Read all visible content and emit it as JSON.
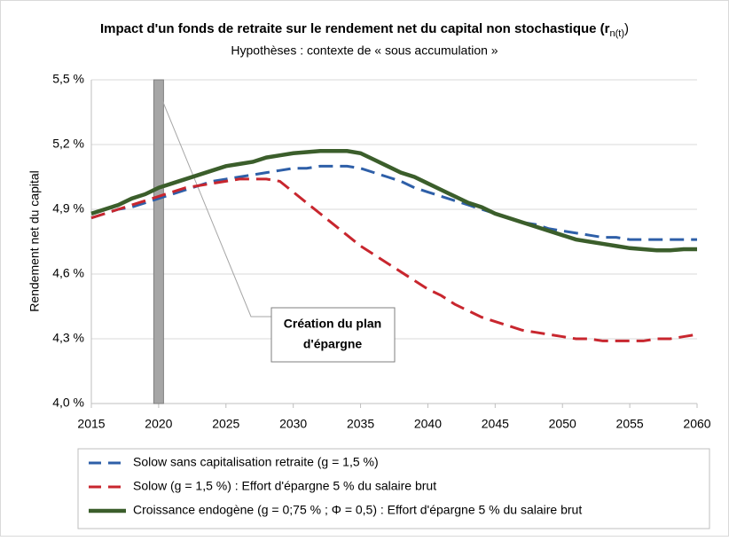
{
  "chart_data": {
    "type": "line",
    "title": "Impact d'un fonds de retraite sur le rendement net du capital non stochastique (r",
    "title_subscript": "n(t)",
    "title_end": ")",
    "subtitle": "Hypothèses : contexte de « sous accumulation »",
    "ylabel": "Rendement net du capital",
    "annotation": [
      "Création du plan",
      "d'épargne"
    ],
    "event_x": 2020,
    "x": [
      2015,
      2016,
      2017,
      2018,
      2019,
      2020,
      2021,
      2022,
      2023,
      2024,
      2025,
      2026,
      2027,
      2028,
      2029,
      2030,
      2031,
      2032,
      2033,
      2034,
      2035,
      2036,
      2037,
      2038,
      2039,
      2040,
      2041,
      2042,
      2043,
      2044,
      2045,
      2046,
      2047,
      2048,
      2049,
      2050,
      2051,
      2052,
      2053,
      2054,
      2055,
      2056,
      2057,
      2058,
      2059,
      2060
    ],
    "series": [
      {
        "name": "Solow sans capitalisation retraite (g = 1,5 %)",
        "color": "#2e5fa8",
        "dash": true,
        "values": [
          4.86,
          4.88,
          4.9,
          4.91,
          4.93,
          4.95,
          4.97,
          4.99,
          5.01,
          5.03,
          5.04,
          5.05,
          5.06,
          5.07,
          5.08,
          5.09,
          5.09,
          5.1,
          5.1,
          5.1,
          5.09,
          5.07,
          5.05,
          5.03,
          5.0,
          4.98,
          4.96,
          4.94,
          4.92,
          4.9,
          4.88,
          4.86,
          4.84,
          4.83,
          4.81,
          4.8,
          4.79,
          4.78,
          4.77,
          4.77,
          4.76,
          4.76,
          4.76,
          4.76,
          4.76,
          4.76
        ]
      },
      {
        "name": "Solow (g = 1,5 %) : Effort d'épargne 5 % du salaire brut",
        "color": "#c8262e",
        "dash": true,
        "values": [
          4.86,
          4.88,
          4.9,
          4.92,
          4.94,
          4.96,
          4.98,
          5.0,
          5.01,
          5.02,
          5.03,
          5.04,
          5.04,
          5.04,
          5.03,
          4.98,
          4.93,
          4.88,
          4.83,
          4.78,
          4.73,
          4.69,
          4.65,
          4.61,
          4.57,
          4.53,
          4.5,
          4.46,
          4.43,
          4.4,
          4.38,
          4.36,
          4.34,
          4.33,
          4.32,
          4.31,
          4.3,
          4.3,
          4.29,
          4.29,
          4.29,
          4.29,
          4.3,
          4.3,
          4.31,
          4.32
        ]
      },
      {
        "name": "Croissance endogène (g = 0;75 % ; Φ = 0,5) :  Effort d'épargne 5 % du salaire brut",
        "color": "#3b5e2b",
        "dash": false,
        "values": [
          4.88,
          4.9,
          4.92,
          4.95,
          4.97,
          5.0,
          5.02,
          5.04,
          5.06,
          5.08,
          5.1,
          5.11,
          5.12,
          5.14,
          5.15,
          5.16,
          5.165,
          5.17,
          5.17,
          5.17,
          5.16,
          5.13,
          5.1,
          5.07,
          5.05,
          5.02,
          4.99,
          4.96,
          4.93,
          4.91,
          4.88,
          4.86,
          4.84,
          4.82,
          4.8,
          4.78,
          4.76,
          4.75,
          4.74,
          4.73,
          4.72,
          4.715,
          4.71,
          4.71,
          4.715,
          4.715
        ]
      }
    ],
    "xlim": [
      2015,
      2060
    ],
    "xticks": [
      2015,
      2020,
      2025,
      2030,
      2035,
      2040,
      2045,
      2050,
      2055,
      2060
    ],
    "ylim": [
      4.0,
      5.5
    ],
    "yticks": [
      {
        "value": 4.0,
        "label": "4,0 %"
      },
      {
        "value": 4.3,
        "label": "4,3 %"
      },
      {
        "value": 4.6,
        "label": "4,6 %"
      },
      {
        "value": 4.9,
        "label": "4,9 %"
      },
      {
        "value": 5.2,
        "label": "5,2 %"
      },
      {
        "value": 5.5,
        "label": "5,5 %"
      }
    ],
    "grid": true
  }
}
